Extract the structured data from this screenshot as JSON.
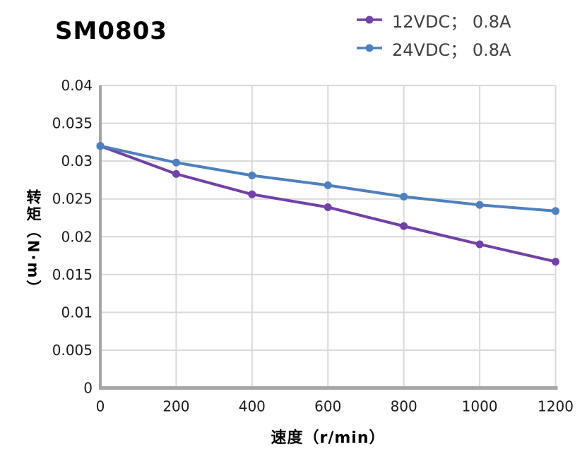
{
  "title": "SM0803",
  "legend": {
    "items": [
      {
        "label": "12VDC； 0.8A",
        "color": "#7141A5"
      },
      {
        "label": "24VDC； 0.8A",
        "color": "#4E80BD"
      }
    ]
  },
  "chart_data": {
    "type": "line",
    "title": "SM0803",
    "x": [
      0,
      200,
      400,
      600,
      800,
      1000,
      1200
    ],
    "series": [
      {
        "name": "12VDC； 0.8A",
        "color": "#7141A5",
        "values": [
          0.032,
          0.0283,
          0.0256,
          0.0239,
          0.0214,
          0.019,
          0.0167
        ]
      },
      {
        "name": "24VDC； 0.8A",
        "color": "#4E80BD",
        "values": [
          0.032,
          0.0298,
          0.0281,
          0.0268,
          0.0253,
          0.0242,
          0.0234
        ]
      }
    ],
    "xlabel": "速度（r/min）",
    "ylabel": "转矩（N·m）",
    "xlim": [
      0,
      1200
    ],
    "ylim": [
      0,
      0.04
    ],
    "x_ticks": [
      0,
      200,
      400,
      600,
      800,
      1000,
      1200
    ],
    "y_ticks": [
      0,
      0.005,
      0.01,
      0.015,
      0.02,
      0.025,
      0.03,
      0.035,
      0.04
    ],
    "grid": true,
    "legend_position": "top-right"
  },
  "colors": {
    "gridline": "#D9D9D9",
    "axis_line": "#A6A6A6",
    "tick_text": "#1A1A1A",
    "legend_text": "#3F3F3F",
    "title_text": "#000000",
    "background": "#FFFFFF"
  }
}
